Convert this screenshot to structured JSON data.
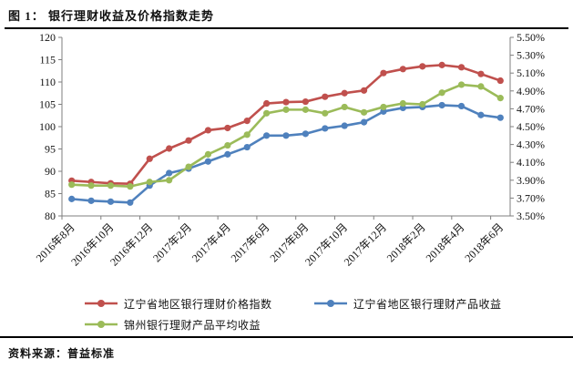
{
  "page": {
    "title": "图 1：  银行理财收益及价格指数走势",
    "source_label": "资料来源：普益标准"
  },
  "chart_data": {
    "type": "line",
    "title": "图 1：  银行理财收益及价格指数走势",
    "x": [
      "2016年8月",
      "2016年9月",
      "2016年10月",
      "2016年11月",
      "2016年12月",
      "2017年1月",
      "2017年2月",
      "2017年3月",
      "2017年4月",
      "2017年5月",
      "2017年6月",
      "2017年7月",
      "2017年8月",
      "2017年9月",
      "2017年10月",
      "2017年11月",
      "2017年12月",
      "2018年1月",
      "2018年2月",
      "2018年3月",
      "2018年4月",
      "2018年5月",
      "2018年6月"
    ],
    "x_tick_labels": [
      "2016年8月",
      "2016年10月",
      "2016年12月",
      "2017年2月",
      "2017年4月",
      "2017年6月",
      "2017年8月",
      "2017年10月",
      "2017年12月",
      "2018年2月",
      "2018年4月",
      "2018年6月"
    ],
    "left_axis": {
      "min": 80,
      "max": 120,
      "step": 5,
      "tick_labels": [
        "120",
        "115",
        "110",
        "105",
        "100",
        "95",
        "90",
        "85",
        "80"
      ]
    },
    "right_axis": {
      "min": 3.5,
      "max": 5.5,
      "step": 0.2,
      "tick_labels": [
        "5.50%",
        "5.30%",
        "5.10%",
        "4.90%",
        "4.70%",
        "4.50%",
        "4.30%",
        "4.10%",
        "3.90%",
        "3.70%",
        "3.50%"
      ]
    },
    "grid": false,
    "legend_position": "bottom",
    "series": [
      {
        "name": "辽宁省地区银行理财价格指数",
        "axis": "left",
        "color": "#c0504d",
        "values": [
          87.9,
          87.6,
          87.3,
          87.2,
          92.8,
          95.1,
          96.9,
          99.2,
          99.7,
          101.3,
          105.2,
          105.5,
          105.6,
          106.7,
          107.5,
          108.1,
          112.0,
          112.9,
          113.5,
          113.8,
          113.3,
          111.8,
          110.3
        ]
      },
      {
        "name": "辽宁省地区银行理财产品收益",
        "axis": "right",
        "color": "#4f81bd",
        "values": [
          3.69,
          3.67,
          3.66,
          3.65,
          3.84,
          3.98,
          4.03,
          4.11,
          4.19,
          4.27,
          4.4,
          4.4,
          4.42,
          4.48,
          4.51,
          4.55,
          4.67,
          4.71,
          4.72,
          4.74,
          4.73,
          4.63,
          4.6
        ]
      },
      {
        "name": "锦州银行理财产品平均收益",
        "axis": "right",
        "color": "#9bbb59",
        "values": [
          3.85,
          3.84,
          3.84,
          3.83,
          3.88,
          3.9,
          4.05,
          4.19,
          4.29,
          4.41,
          4.65,
          4.69,
          4.69,
          4.65,
          4.72,
          4.66,
          4.72,
          4.76,
          4.75,
          4.88,
          4.97,
          4.95,
          4.82
        ]
      }
    ],
    "axis_color": "#7f7f7f",
    "tick_text_color": "#111111"
  }
}
